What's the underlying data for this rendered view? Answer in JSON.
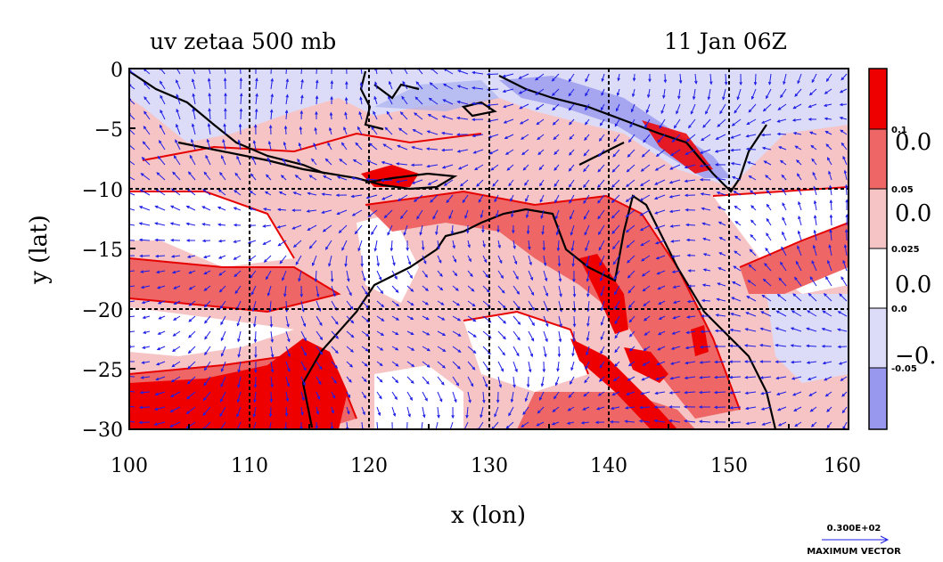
{
  "title_left": "uv zetaa 500 mb",
  "title_right": "11 Jan 06Z",
  "x_axis": {
    "label": "x (lon)",
    "ticks": [
      "100",
      "110",
      "120",
      "130",
      "140",
      "150",
      "160"
    ]
  },
  "y_axis": {
    "label": "y (lat)",
    "ticks": [
      "0",
      "−5",
      "−10",
      "−15",
      "−20",
      "−25",
      "−30"
    ]
  },
  "colorbar": {
    "small_labels": [
      "0.1",
      "0.05",
      "0.025",
      "0.0",
      "-0.05"
    ],
    "large_labels": [
      "0.0",
      "0.0",
      "0.0",
      "−0."
    ],
    "colors": [
      "#ee0000",
      "#ee6666",
      "#f6c4c4",
      "#ffffff",
      "#dcdcf8",
      "#9898ee"
    ]
  },
  "reference_vector": {
    "value": "0.300E+02",
    "label": "MAXIMUM VECTOR"
  },
  "colors": {
    "vector": "#1e1ee6",
    "grid": "#000000",
    "coast": "#000000",
    "red_contour": "#e60000",
    "blue_fill": "#aab0f0"
  }
}
